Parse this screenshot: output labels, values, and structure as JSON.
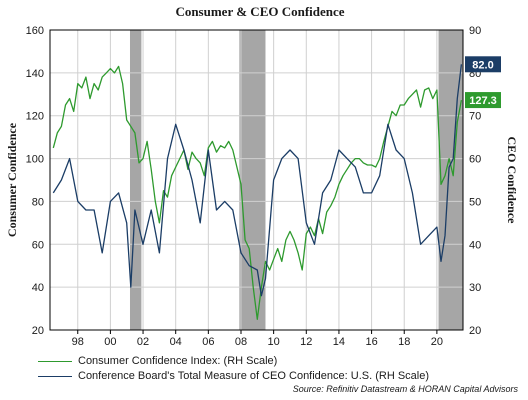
{
  "chart_data": {
    "type": "line",
    "title": "Consumer & CEO Confidence",
    "ylabel_left": "Consumer Confidence",
    "ylabel_right": "CEO Confidence",
    "ylim_left": [
      20,
      160
    ],
    "ylim_right": [
      20,
      90
    ],
    "xlim": [
      1996.3,
      2021.6
    ],
    "left_ticks": [
      "20",
      "40",
      "60",
      "80",
      "100",
      "120",
      "140",
      "160"
    ],
    "right_ticks": [
      "20",
      "30",
      "40",
      "50",
      "60",
      "70",
      "80",
      "90"
    ],
    "x_ticks": [
      "98",
      "00",
      "02",
      "04",
      "06",
      "08",
      "10",
      "12",
      "14",
      "16",
      "18",
      "20"
    ],
    "grid": true,
    "recessions": [
      [
        2001.2,
        2001.9
      ],
      [
        2007.9,
        2009.5
      ],
      [
        2020.1,
        2021.6
      ]
    ],
    "series": [
      {
        "name": "Consumer Confidence Index: (RH Scale)",
        "color": "#2e9a2e",
        "axis": "left",
        "x": [
          1996.5,
          1996.75,
          1997.0,
          1997.25,
          1997.5,
          1997.75,
          1998.0,
          1998.25,
          1998.5,
          1998.75,
          1999.0,
          1999.25,
          1999.5,
          1999.75,
          2000.0,
          2000.25,
          2000.5,
          2000.75,
          2001.0,
          2001.25,
          2001.5,
          2001.75,
          2002.0,
          2002.25,
          2002.5,
          2002.75,
          2003.0,
          2003.25,
          2003.5,
          2003.75,
          2004.0,
          2004.25,
          2004.5,
          2004.75,
          2005.0,
          2005.25,
          2005.5,
          2005.75,
          2006.0,
          2006.25,
          2006.5,
          2006.75,
          2007.0,
          2007.25,
          2007.5,
          2007.75,
          2008.0,
          2008.25,
          2008.5,
          2008.75,
          2009.0,
          2009.25,
          2009.5,
          2009.75,
          2010.0,
          2010.25,
          2010.5,
          2010.75,
          2011.0,
          2011.25,
          2011.5,
          2011.75,
          2012.0,
          2012.25,
          2012.5,
          2012.75,
          2013.0,
          2013.25,
          2013.5,
          2013.75,
          2014.0,
          2014.25,
          2014.5,
          2014.75,
          2015.0,
          2015.25,
          2015.5,
          2015.75,
          2016.0,
          2016.25,
          2016.5,
          2016.75,
          2017.0,
          2017.25,
          2017.5,
          2017.75,
          2018.0,
          2018.25,
          2018.5,
          2018.75,
          2019.0,
          2019.25,
          2019.5,
          2019.75,
          2020.0,
          2020.25,
          2020.5,
          2020.75,
          2021.0,
          2021.25,
          2021.5
        ],
        "values": [
          105,
          112,
          115,
          125,
          128,
          122,
          135,
          133,
          138,
          128,
          135,
          132,
          138,
          140,
          142,
          140,
          143,
          135,
          118,
          115,
          112,
          98,
          100,
          108,
          95,
          80,
          70,
          85,
          82,
          92,
          96,
          100,
          104,
          95,
          103,
          100,
          98,
          92,
          105,
          108,
          103,
          106,
          105,
          108,
          104,
          96,
          88,
          62,
          58,
          40,
          25,
          40,
          52,
          48,
          53,
          58,
          52,
          62,
          66,
          62,
          56,
          48,
          65,
          68,
          64,
          72,
          65,
          75,
          78,
          82,
          88,
          92,
          95,
          98,
          100,
          100,
          98,
          97,
          97,
          96,
          100,
          108,
          115,
          122,
          120,
          125,
          125,
          128,
          130,
          132,
          124,
          132,
          133,
          128,
          132,
          88,
          92,
          100,
          92,
          117,
          127.3
        ]
      },
      {
        "name": "Conference Board's Total Measure of CEO Confidence: U.S. (RH Scale)",
        "color": "#1b3d66",
        "axis": "right",
        "x": [
          1996.5,
          1997.0,
          1997.5,
          1998.0,
          1998.5,
          1999.0,
          1999.5,
          2000.0,
          2000.5,
          2001.0,
          2001.25,
          2001.5,
          2002.0,
          2002.5,
          2003.0,
          2003.5,
          2004.0,
          2004.5,
          2005.0,
          2005.5,
          2006.0,
          2006.5,
          2007.0,
          2007.5,
          2008.0,
          2008.5,
          2009.0,
          2009.25,
          2009.5,
          2010.0,
          2010.5,
          2011.0,
          2011.5,
          2012.0,
          2012.5,
          2013.0,
          2013.5,
          2014.0,
          2014.5,
          2015.0,
          2015.5,
          2016.0,
          2016.5,
          2017.0,
          2017.5,
          2018.0,
          2018.5,
          2019.0,
          2019.5,
          2020.0,
          2020.25,
          2020.5,
          2020.75,
          2021.0,
          2021.25,
          2021.5
        ],
        "values": [
          52,
          55,
          60,
          50,
          48,
          48,
          38,
          50,
          52,
          45,
          30,
          48,
          40,
          48,
          38,
          60,
          68,
          62,
          55,
          45,
          62,
          48,
          50,
          48,
          38,
          35,
          34,
          28,
          32,
          55,
          60,
          62,
          60,
          45,
          40,
          52,
          55,
          62,
          60,
          58,
          52,
          52,
          56,
          68,
          62,
          60,
          52,
          40,
          42,
          44,
          36,
          42,
          58,
          60,
          74,
          82.0
        ]
      }
    ],
    "end_labels": [
      "82.0",
      "127.3"
    ],
    "end_label_colors": [
      "#1b3d66",
      "#2e9a2e"
    ],
    "source": "Source: Refinitiv Datastream & HORAN Capital Advisors"
  }
}
